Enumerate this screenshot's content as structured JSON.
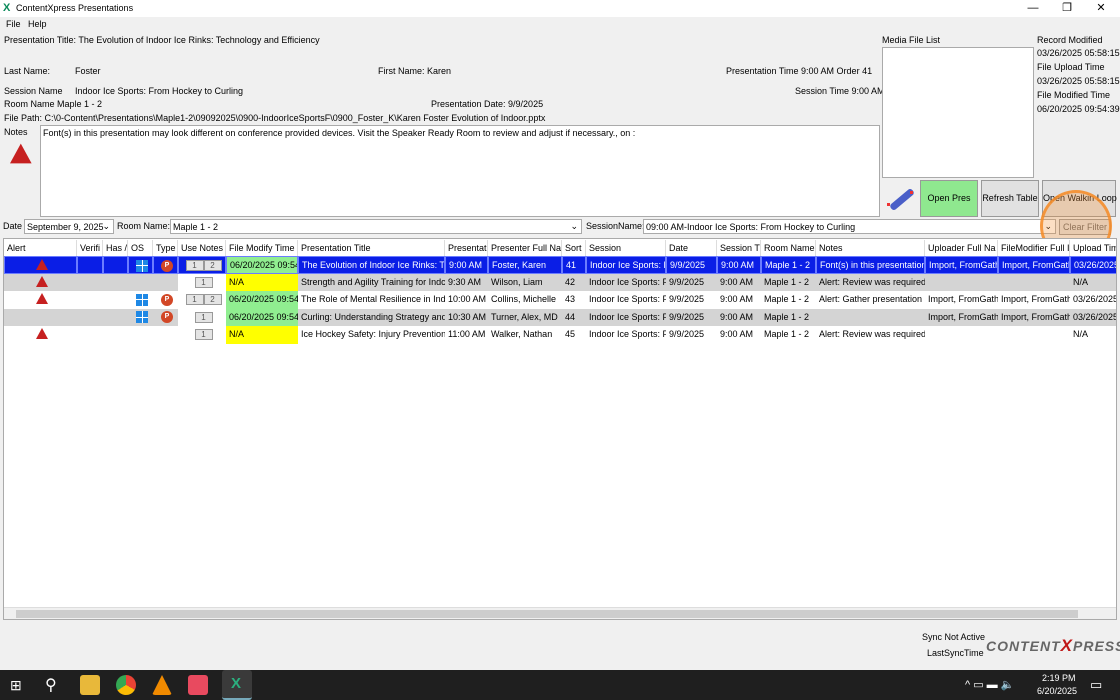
{
  "window": {
    "title": "ContentXpress Presentations",
    "minimize": "—",
    "restore": "❐",
    "close": "✕"
  },
  "menu": [
    "File",
    "Help"
  ],
  "details": {
    "presentation_title": "Presentation Title: The Evolution of Indoor Ice Rinks: Technology and Efficiency",
    "last_name_label": "Last Name:",
    "last_name": "Foster",
    "first_name": "First Name: Karen",
    "pres_time_order": "Presentation Time 9:00 AM  Order 41",
    "session_name_label": "Session Name",
    "session_name": "Indoor Ice Sports: From Hockey to Curling",
    "session_time": "Session Time 9:00 AM",
    "room_name": "Room Name Maple 1 - 2",
    "pres_date": "Presentation Date: 9/9/2025",
    "file_path": "File Path: C:\\0-Content\\Presentations\\Maple1-2\\09092025\\0900-IndoorIceSportsF\\0900_Foster_K\\Karen Foster Evolution of Indoor.pptx",
    "notes_label": "Notes",
    "notes": "Font(s) in this presentation may look different on conference provided devices.  Visit the Speaker Ready Room to review and adjust if necessary.,  on :"
  },
  "media": {
    "label": "Media File List"
  },
  "record": {
    "record_modified_label": "Record Modified",
    "record_modified": "03/26/2025 05:58:15",
    "file_upload_label": "File Upload Time",
    "file_upload": "03/26/2025 05:58:15",
    "file_modified_label": "File Modified Time",
    "file_modified": "06/20/2025 09:54:39"
  },
  "buttons": {
    "open_pres": "Open Pres",
    "refresh": "Refresh Table",
    "walkin": "Open Walkin Loop",
    "clear_filter": "Clear Filter"
  },
  "filters": {
    "date_label": "Date",
    "date": "September 9, 2025",
    "room_label": "Room Name:",
    "room": "Maple 1 - 2",
    "session_label": "SessionName:",
    "session": "09:00 AM-Indoor Ice Sports: From Hockey to Curling"
  },
  "columns": [
    "Alert",
    "Verifi",
    "Has /",
    "OS",
    "Type",
    "Use Notes",
    "File Modify Time",
    "Presentation Title",
    "Presentat",
    "Presenter Full Na",
    "Sort",
    "Session",
    "Date",
    "Session T",
    "Room Name",
    "Notes",
    "Uploader Full Na",
    "FileModifier Full I",
    "Upload Tim"
  ],
  "rows": [
    {
      "alert": true,
      "os": true,
      "type": true,
      "notes_btns": [
        "1",
        "2"
      ],
      "modify": "06/20/2025 09:54:",
      "title": "The Evolution of Indoor Ice Rinks: Tec",
      "time": "9:00 AM",
      "presenter": "Foster, Karen",
      "sort": "41",
      "session": "Indoor Ice Sports: Fr",
      "date": "9/9/2025",
      "session_time": "9:00 AM",
      "room": "Maple 1 - 2",
      "notes": "Font(s) in this presentation",
      "uploader": "Import, FromGath",
      "modifier": "Import, FromGath",
      "upload": "03/26/2025",
      "selected": true
    },
    {
      "alert": true,
      "os": false,
      "type": false,
      "notes_btns": [
        "1"
      ],
      "modify": "N/A",
      "title": "Strength and Agility Training for Indc",
      "time": "9:30 AM",
      "presenter": "Wilson, Liam",
      "sort": "42",
      "session": "Indoor Ice Sports: Fr",
      "date": "9/9/2025",
      "session_time": "9:00 AM",
      "room": "Maple 1 - 2",
      "notes": "Alert: Review was required (",
      "uploader": "",
      "modifier": "",
      "upload": "N/A"
    },
    {
      "alert": true,
      "os": true,
      "type": true,
      "notes_btns": [
        "1",
        "2"
      ],
      "modify": "06/20/2025 09:54:",
      "title": "The Role of Mental Resilience in Indc",
      "time": "10:00 AM",
      "presenter": "Collins, Michelle",
      "sort": "43",
      "session": "Indoor Ice Sports: Fr",
      "date": "9/9/2025",
      "session_time": "9:00 AM",
      "room": "Maple 1 - 2",
      "notes": "Alert: Gather presentation r",
      "uploader": "Import, FromGath",
      "modifier": "Import, FromGath",
      "upload": "03/26/2025"
    },
    {
      "alert": false,
      "os": true,
      "type": true,
      "notes_btns": [
        "1"
      ],
      "modify": "06/20/2025 09:54:",
      "title": "Curling: Understanding Strategy and",
      "time": "10:30 AM",
      "presenter": "Turner, Alex, MD",
      "sort": "44",
      "session": "Indoor Ice Sports: Fr",
      "date": "9/9/2025",
      "session_time": "9:00 AM",
      "room": "Maple 1 - 2",
      "notes": "",
      "uploader": "Import, FromGath",
      "modifier": "Import, FromGath",
      "upload": "03/26/2025"
    },
    {
      "alert": true,
      "os": false,
      "type": false,
      "notes_btns": [
        "1"
      ],
      "modify": "N/A",
      "title": "Ice Hockey Safety: Injury Prevention a",
      "time": "11:00 AM",
      "presenter": "Walker, Nathan",
      "sort": "45",
      "session": "Indoor Ice Sports: Fr",
      "date": "9/9/2025",
      "session_time": "9:00 AM",
      "room": "Maple 1 - 2",
      "notes": "Alert: Review was required (",
      "uploader": "",
      "modifier": "",
      "upload": "N/A"
    }
  ],
  "status": {
    "sync": "Sync Not Active",
    "last_sync": "LastSyncTime",
    "logo": "CONTENTXPRESS"
  },
  "taskbar": {
    "time": "2:19 PM",
    "date": "6/20/2025"
  },
  "colors": {
    "selection": "#0a1ee6",
    "green": "#90ee90",
    "yellow": "#ffff00",
    "open_pres": "#8fe88f",
    "alert": "#c62020"
  }
}
